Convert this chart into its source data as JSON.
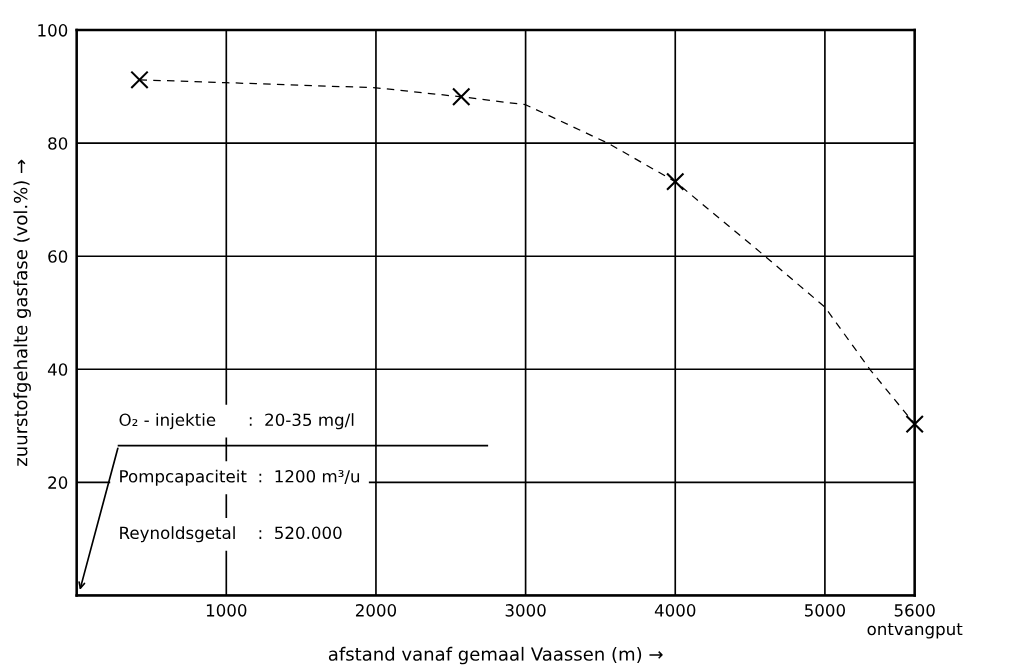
{
  "chart_data": {
    "type": "scatter",
    "xlabel": "afstand vanaf gemaal Vaassen (m) →",
    "ylabel": "zuurstofgehalte gasfase (vol.%) →",
    "series": [
      {
        "color": "#000000",
        "marker": "cross",
        "x": [
          420,
          2570,
          4000,
          5600
        ],
        "values": [
          91.2,
          88.2,
          73.2,
          30.3
        ]
      },
      {
        "type": "line",
        "color": "#000000",
        "marker": "none",
        "line_style": "dashed",
        "x": [
          420,
          1000,
          2000,
          2570,
          3000,
          3550,
          4000,
          4600,
          5000,
          5300,
          5600
        ],
        "values": [
          91.2,
          90.7,
          89.8,
          88.2,
          86.8,
          80,
          73.2,
          60,
          51,
          40,
          30.3
        ]
      }
    ],
    "xlim": [
      0,
      5600
    ],
    "ylim": [
      0,
      100
    ],
    "xticks": [
      {
        "value": 0,
        "label": null
      },
      1000,
      2000,
      3000,
      4000,
      5000,
      {
        "value": 5600,
        "label": "5600\nontvangput"
      }
    ],
    "yticks": [
      {
        "value": 0,
        "label": null
      },
      20,
      40,
      60,
      80,
      100
    ],
    "grid": true,
    "annotations": [
      "O₂ - injektie      :  20-35 mg/l",
      "Pompcapaciteit  :  1200 m³/u",
      "Reynoldsgetal    :  520.000"
    ]
  }
}
